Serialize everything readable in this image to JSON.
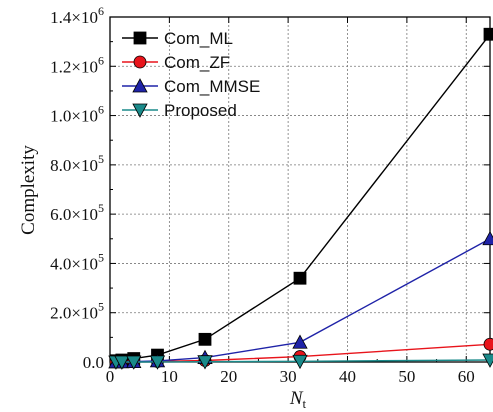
{
  "chart_data": {
    "type": "line",
    "ylabel": "Complexity",
    "xlabel_main": "N",
    "xlabel_sub": "t",
    "xlim": [
      0,
      64
    ],
    "ylim": [
      0,
      1400000
    ],
    "x_ticks": [
      0,
      10,
      20,
      30,
      40,
      50,
      60
    ],
    "y_ticks": [
      {
        "value": 0,
        "label": "0.0"
      },
      {
        "value": 200000,
        "mant": "2.0",
        "exp": "5"
      },
      {
        "value": 400000,
        "mant": "4.0",
        "exp": "5"
      },
      {
        "value": 600000,
        "mant": "6.0",
        "exp": "5"
      },
      {
        "value": 800000,
        "mant": "8.0",
        "exp": "5"
      },
      {
        "value": 1000000,
        "mant": "1.0",
        "exp": "6"
      },
      {
        "value": 1200000,
        "mant": "1.2",
        "exp": "6"
      },
      {
        "value": 1400000,
        "mant": "1.4",
        "exp": "6"
      }
    ],
    "grid": true,
    "legend_position": "top-left",
    "x": [
      1,
      2,
      4,
      8,
      16,
      32,
      64
    ],
    "series": [
      {
        "name": "Com_ML",
        "marker": "square",
        "color": "#000000",
        "values": [
          5000,
          8000,
          14000,
          28000,
          92000,
          340000,
          1330000
        ]
      },
      {
        "name": "Com_ZF",
        "marker": "circle",
        "color": "#e8141b",
        "values": [
          100,
          200,
          600,
          2000,
          6000,
          22000,
          72000
        ]
      },
      {
        "name": "Com_MMSE",
        "marker": "triangle-up",
        "color": "#1f23a8",
        "values": [
          200,
          500,
          1500,
          4500,
          18000,
          80000,
          500000
        ]
      },
      {
        "name": "Proposed",
        "marker": "triangle-down",
        "color": "#1a8a8a",
        "values": [
          50,
          100,
          200,
          500,
          1200,
          3000,
          8000
        ]
      }
    ]
  }
}
